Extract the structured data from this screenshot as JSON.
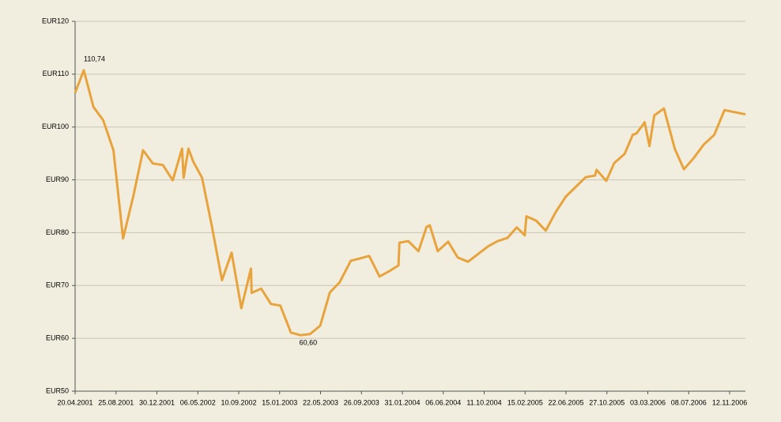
{
  "chart_data": {
    "type": "line",
    "x": [
      "20.04.2001",
      "17.05.2001",
      "16.06.2001",
      "16.07.2001",
      "17.08.2001",
      "16.09.2001",
      "18.10.2001",
      "17.11.2001",
      "17.12.2001",
      "18.01.2002",
      "17.02.2002",
      "18.03.2002",
      "23.03.2002",
      "07.04.2002",
      "22.04.2002",
      "19.05.2002",
      "18.06.2002",
      "20.07.2002",
      "19.08.2002",
      "18.09.2002",
      "18.10.2002",
      "20.10.2002",
      "19.11.2002",
      "19.12.2002",
      "17.01.2003",
      "19.02.2003",
      "20.03.2003",
      "19.04.2003",
      "21.05.2003",
      "20.06.2003",
      "20.07.2003",
      "24.08.2003",
      "20.09.2003",
      "20.10.2003",
      "21.11.2003",
      "21.12.2003",
      "19.01.2004",
      "22.01.2004",
      "18.02.2004",
      "21.03.2004",
      "15.04.2004",
      "25.04.2004",
      "20.05.2004",
      "21.06.2004",
      "21.07.2004",
      "22.08.2004",
      "23.10.2004",
      "22.11.2004",
      "22.12.2004",
      "20.01.2005",
      "14.02.2005",
      "19.02.2005",
      "21.03.2005",
      "20.04.2005",
      "22.05.2005",
      "21.06.2005",
      "22.08.2005",
      "20.09.2005",
      "25.09.2005",
      "25.10.2005",
      "19.11.2005",
      "21.12.2005",
      "15.01.2006",
      "27.01.2006",
      "21.02.2006",
      "08.03.2006",
      "23.03.2006",
      "22.04.2006",
      "26.05.2006",
      "23.06.2006",
      "23.07.2006",
      "24.08.2006",
      "25.09.2006",
      "27.10.2006",
      "31.12.2006"
    ],
    "series": [
      {
        "color": "#e8a33c",
        "values": [
          106.5,
          110.74,
          103.8,
          101.3,
          95.6,
          78.9,
          87,
          95.6,
          93.1,
          92.8,
          89.9,
          95.9,
          90.4,
          95.9,
          93.4,
          90.4,
          81.4,
          71,
          76.2,
          65.7,
          73.2,
          68.6,
          69.4,
          66.5,
          66.2,
          61.1,
          60.6,
          60.8,
          62.4,
          68.7,
          70.6,
          74.7,
          75.1,
          75.6,
          71.7,
          72.7,
          73.8,
          78.1,
          78.4,
          76.5,
          81.1,
          81.4,
          76.5,
          78.3,
          75.3,
          74.5,
          77.4,
          78.4,
          79,
          81,
          79.5,
          83.1,
          82.3,
          80.4,
          84,
          86.8,
          90.5,
          90.8,
          91.9,
          89.8,
          93.2,
          94.9,
          98.5,
          98.8,
          100.9,
          96.4,
          102.2,
          103.5,
          95.8,
          92,
          94.1,
          96.7,
          98.5,
          103.2,
          102.4
        ],
        "value_labels": [
          null,
          "110,74",
          null,
          null,
          null,
          null,
          null,
          null,
          null,
          null,
          null,
          null,
          null,
          null,
          null,
          null,
          null,
          null,
          null,
          null,
          null,
          null,
          null,
          null,
          null,
          null,
          "60,60",
          null,
          null,
          null,
          null,
          null,
          null,
          null,
          null,
          null,
          null,
          null,
          null,
          null,
          null,
          null,
          null,
          null,
          null,
          null,
          null,
          null,
          null,
          null,
          null,
          null,
          null,
          null,
          null,
          null,
          null,
          null,
          null,
          null,
          null,
          null,
          null,
          null,
          null,
          null,
          null,
          null,
          null,
          null,
          null,
          null,
          null,
          null,
          null
        ]
      }
    ],
    "xlim": [
      "20.04.2001",
      "31.12.2006"
    ],
    "xticks": [
      "20.04.2001",
      "25.08.2001",
      "30.12.2001",
      "06.05.2002",
      "10.09.2002",
      "15.01.2003",
      "22.05.2003",
      "26.09.2003",
      "31.01.2004",
      "06.06.2004",
      "11.10.2004",
      "15.02.2005",
      "22.06.2005",
      "27.10.2005",
      "03.03.2006",
      "08.07.2006",
      "12.11.2006"
    ],
    "ylim": [
      50,
      120
    ],
    "yticks": [
      {
        "value": 50,
        "label": "EUR50"
      },
      {
        "value": 60,
        "label": "EUR60"
      },
      {
        "value": 70,
        "label": "EUR70"
      },
      {
        "value": 80,
        "label": "EUR80"
      },
      {
        "value": 90,
        "label": "EUR90"
      },
      {
        "value": 100,
        "label": "EUR100"
      },
      {
        "value": 110,
        "label": "EUR110"
      },
      {
        "value": 120,
        "label": "EUR120"
      }
    ],
    "grid": true
  }
}
